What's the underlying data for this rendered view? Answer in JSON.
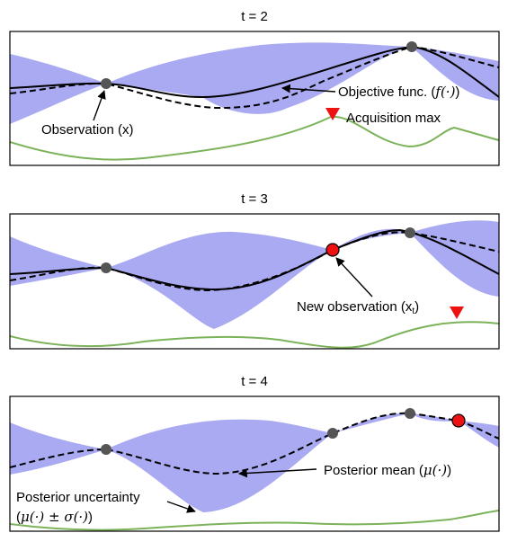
{
  "panels": [
    {
      "title": "t = 2",
      "labels": {
        "objective": "Objective func. (",
        "objective_math": "f(·)",
        "objective_end": ")",
        "acquisition": "Acquisition max",
        "observation": "Observation (x)"
      }
    },
    {
      "title": "t = 3",
      "labels": {
        "new_observation": "New observation (x",
        "new_observation_sub": "t",
        "new_observation_end": ")"
      }
    },
    {
      "title": "t = 4",
      "labels": {
        "posterior_mean": "Posterior mean (",
        "posterior_mean_math": "μ(·)",
        "posterior_mean_end": ")",
        "posterior_unc_1": "Posterior uncertainty",
        "posterior_unc_2_open": "(",
        "posterior_unc_2_math": "μ(·) ± σ(·)",
        "posterior_unc_2_close": ")"
      }
    }
  ],
  "colors": {
    "uncertainty": "#aaaaf2",
    "acquisition": "#7cb35a",
    "observation": "#555555",
    "new_observation": "#ee1111",
    "acquisition_marker": "#ee1111",
    "curve": "#000000"
  }
}
